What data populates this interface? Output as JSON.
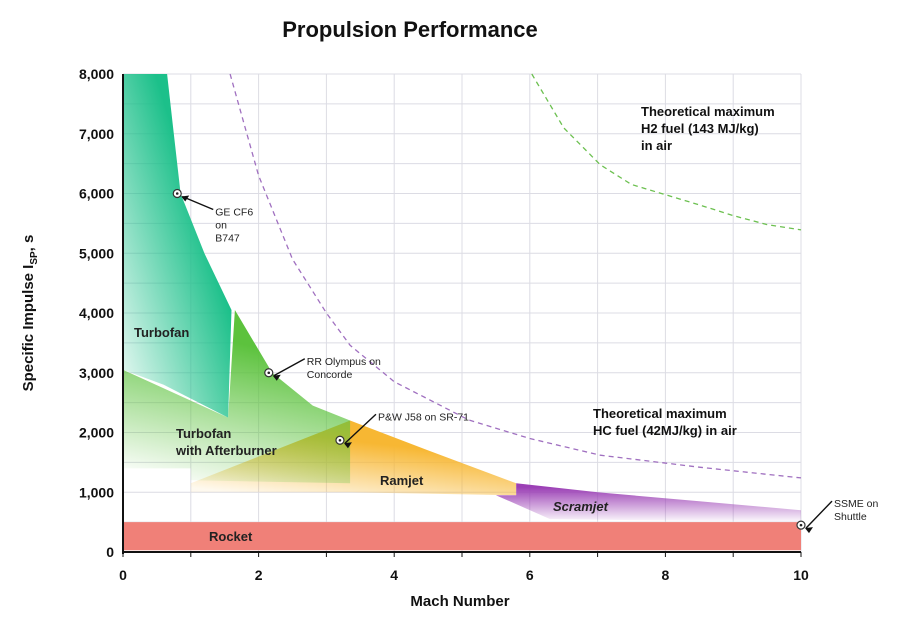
{
  "chart_data": {
    "type": "area",
    "title": "Propulsion Performance",
    "xlabel": "Mach Number",
    "ylabel": "Specific Impulse I",
    "ylabel_sub": "SP",
    "ylabel_unit": ",  s",
    "xlim": [
      0,
      10
    ],
    "ylim": [
      0,
      8000
    ],
    "x_ticks": [
      0,
      2,
      4,
      6,
      8,
      10
    ],
    "y_ticks": [
      0,
      1000,
      2000,
      3000,
      4000,
      5000,
      6000,
      7000,
      8000
    ],
    "y_tick_labels": [
      "0",
      "1,000",
      "2,000",
      "3,000",
      "4,000",
      "5,000",
      "6,000",
      "7,000",
      "8,000"
    ],
    "grid": true,
    "regions": [
      {
        "name": "Rocket",
        "color": "#f08078",
        "points": [
          [
            0,
            500
          ],
          [
            10,
            500
          ],
          [
            10,
            30
          ],
          [
            0,
            30
          ]
        ]
      },
      {
        "name": "Ramjet",
        "color": "#f7b733",
        "points": [
          [
            3.35,
            2200
          ],
          [
            4.5,
            1700
          ],
          [
            5.8,
            1150
          ],
          [
            5.8,
            950
          ],
          [
            3.35,
            1000
          ],
          [
            1,
            1000
          ],
          [
            1,
            1150
          ]
        ]
      },
      {
        "name": "Scramjet",
        "color": "#9b3fb5",
        "points": [
          [
            5.8,
            1150
          ],
          [
            7,
            1000
          ],
          [
            8.5,
            850
          ],
          [
            10,
            700
          ],
          [
            10,
            500
          ],
          [
            6.3,
            550
          ],
          [
            5.5,
            950
          ],
          [
            5.8,
            950
          ]
        ]
      },
      {
        "name": "Turbofan with Afterburner",
        "color": "#5cc23d",
        "points": [
          [
            0,
            3050
          ],
          [
            1.55,
            2250
          ],
          [
            1.65,
            4050
          ],
          [
            2.2,
            3000
          ],
          [
            2.8,
            2450
          ],
          [
            3.35,
            2200
          ],
          [
            3.35,
            1150
          ],
          [
            1,
            1200
          ],
          [
            1,
            1400
          ],
          [
            0,
            1400
          ]
        ]
      },
      {
        "name": "Turbofan",
        "color": "#1cc08a",
        "points": [
          [
            0,
            8000
          ],
          [
            0.65,
            8000
          ],
          [
            0.75,
            7000
          ],
          [
            0.85,
            6000
          ],
          [
            1.2,
            5000
          ],
          [
            1.6,
            4050
          ],
          [
            1.55,
            2250
          ],
          [
            0.6,
            2800
          ],
          [
            0,
            3050
          ]
        ]
      }
    ],
    "region_labels": [
      "Turbofan",
      "Turbofan",
      "with Afterburner",
      "Ramjet",
      "Scramjet",
      "Rocket"
    ],
    "series": [
      {
        "name": "Theoretical maximum HC fuel (42MJ/kg) in air",
        "style": "dashed",
        "color": "#a070c0",
        "x": [
          1.58,
          2,
          2.5,
          3,
          3.35,
          4,
          5.1,
          6,
          7.04,
          8.5,
          10
        ],
        "y": [
          8000,
          6300,
          4900,
          4000,
          3460,
          2850,
          2210,
          1900,
          1620,
          1420,
          1240
        ]
      },
      {
        "name": "Theoretical maximum H2 fuel (143 MJ/kg) in air",
        "style": "dashed",
        "color": "#6cc050",
        "x": [
          6.03,
          6.5,
          7.04,
          7.5,
          8,
          8.5,
          9,
          9.5,
          10
        ],
        "y": [
          8000,
          7100,
          6480,
          6150,
          5980,
          5810,
          5630,
          5480,
          5390
        ]
      }
    ],
    "annotations": [
      {
        "lines": [
          "GE CF6",
          "on",
          "B747"
        ],
        "x": 0.8,
        "y": 6000
      },
      {
        "lines": [
          "RR Olympus on",
          "Concorde"
        ],
        "x": 2.15,
        "y": 3000
      },
      {
        "lines": [
          "P&W J58 on SR-71"
        ],
        "x": 3.2,
        "y": 1870
      },
      {
        "lines": [
          "SSME on",
          "Shuttle"
        ],
        "x": 10,
        "y": 450
      }
    ],
    "curve_labels": [
      [
        "Theoretical maximum",
        "H2 fuel (143 MJ/kg)",
        "in air"
      ],
      [
        "Theoretical maximum",
        "HC fuel (42MJ/kg) in air"
      ]
    ]
  }
}
